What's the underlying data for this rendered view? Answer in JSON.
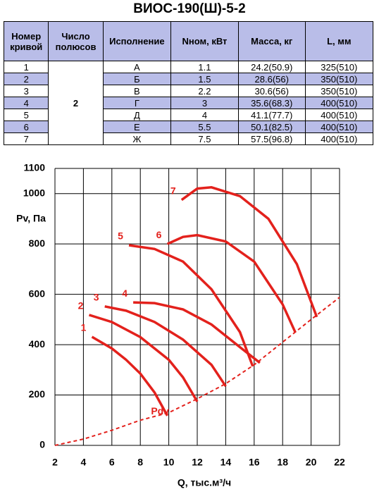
{
  "header": {
    "title": "ВИОС-190(Ш)-5-2"
  },
  "table": {
    "columns": [
      "Номер кривой",
      "Число полюсов",
      "Исполнение",
      "Nном, кВт",
      "Масса, кг",
      "L, мм"
    ],
    "poles": "2",
    "rows": [
      [
        "1",
        "А",
        "1.1",
        "24.2(50.9)",
        "325(510)"
      ],
      [
        "2",
        "Б",
        "1.5",
        "28.6(56)",
        "350(510)"
      ],
      [
        "3",
        "В",
        "2.2",
        "30.6(56)",
        "350(510)"
      ],
      [
        "4",
        "Г",
        "3",
        "35.6(68.3)",
        "400(510)"
      ],
      [
        "5",
        "Д",
        "4",
        "41.1(77.7)",
        "400(510)"
      ],
      [
        "6",
        "Е",
        "5.5",
        "50.1(82.5)",
        "400(510)"
      ],
      [
        "7",
        "Ж",
        "7.5",
        "57.5(96.8)",
        "400(510)"
      ]
    ]
  },
  "chart_data": {
    "type": "line",
    "xlabel": "Q, тыс.м³/ч",
    "ylabel": "Pv, Па",
    "xlim": [
      2,
      22
    ],
    "xticks": [
      2,
      4,
      6,
      8,
      10,
      12,
      14,
      16,
      18,
      20,
      22
    ],
    "ylim": [
      0,
      1100
    ],
    "yticks": [
      0,
      200,
      400,
      600,
      800,
      1000,
      1100
    ],
    "grid": true,
    "series": [
      {
        "name": "1",
        "color": "#e3211c",
        "x": [
          4.6,
          6,
          7,
          8,
          9,
          9.9
        ],
        "values": [
          431,
          385,
          340,
          285,
          210,
          118
        ]
      },
      {
        "name": "2",
        "color": "#e3211c",
        "x": [
          4.4,
          6,
          8,
          10,
          11,
          12
        ],
        "values": [
          518,
          490,
          430,
          340,
          270,
          174
        ]
      },
      {
        "name": "3",
        "color": "#e3211c",
        "x": [
          5.5,
          7,
          9,
          11,
          13,
          14
        ],
        "values": [
          552,
          535,
          490,
          420,
          320,
          235
        ]
      },
      {
        "name": "4",
        "color": "#e3211c",
        "x": [
          7.5,
          9,
          11,
          13,
          15,
          16.4
        ],
        "values": [
          568,
          565,
          540,
          480,
          390,
          328
        ]
      },
      {
        "name": "5",
        "color": "#e3211c",
        "x": [
          7.2,
          9,
          11,
          13,
          15,
          15.9
        ],
        "values": [
          795,
          780,
          730,
          620,
          450,
          314
        ]
      },
      {
        "name": "6",
        "color": "#e3211c",
        "x": [
          9.9,
          11,
          12,
          14,
          16,
          18,
          18.9
        ],
        "values": [
          800,
          828,
          835,
          810,
          730,
          560,
          448
        ]
      },
      {
        "name": "7",
        "color": "#e3211c",
        "x": [
          10.9,
          12,
          13,
          15,
          17,
          19,
          20.4
        ],
        "values": [
          975,
          1020,
          1025,
          990,
          900,
          720,
          510
        ]
      },
      {
        "name": "Pdv",
        "color": "#e3211c",
        "dashed": true,
        "x": [
          2,
          4,
          6,
          8,
          10,
          12,
          14,
          16,
          18,
          20,
          22
        ],
        "values": [
          0,
          25,
          60,
          100,
          130,
          185,
          245,
          320,
          410,
          500,
          588
        ]
      }
    ]
  }
}
